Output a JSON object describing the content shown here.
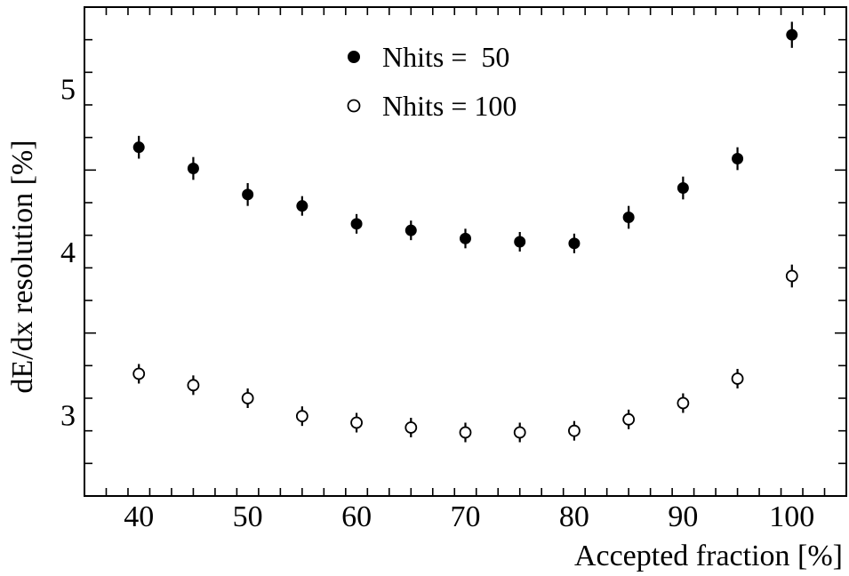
{
  "chart_data": {
    "type": "scatter",
    "xlabel": "Accepted fraction   [%]",
    "ylabel": "dE/dx resolution  [%]",
    "xlim": [
      35,
      105
    ],
    "ylim": [
      2.5,
      5.5
    ],
    "xticks": [
      40,
      50,
      60,
      70,
      80,
      90,
      100
    ],
    "yticks": [
      3,
      4,
      5
    ],
    "x_minor_step": 2,
    "y_minor_step": 0.2,
    "grid": false,
    "legend_position": "top-center",
    "series": [
      {
        "name": "Nhits =  50",
        "marker": "filled-circle",
        "color": "#000000",
        "x": [
          40,
          45,
          50,
          55,
          60,
          65,
          70,
          75,
          80,
          85,
          90,
          95,
          100
        ],
        "y": [
          4.64,
          4.51,
          4.35,
          4.28,
          4.17,
          4.13,
          4.08,
          4.06,
          4.05,
          4.21,
          4.39,
          4.57,
          5.33
        ],
        "yerr": [
          0.07,
          0.07,
          0.07,
          0.06,
          0.06,
          0.06,
          0.06,
          0.06,
          0.06,
          0.07,
          0.07,
          0.07,
          0.08
        ]
      },
      {
        "name": "Nhits = 100",
        "marker": "open-circle",
        "color": "#000000",
        "x": [
          40,
          45,
          50,
          55,
          60,
          65,
          70,
          75,
          80,
          85,
          90,
          95,
          100
        ],
        "y": [
          3.25,
          3.18,
          3.1,
          2.99,
          2.95,
          2.92,
          2.89,
          2.89,
          2.9,
          2.97,
          3.07,
          3.22,
          3.85
        ],
        "yerr": [
          0.06,
          0.06,
          0.06,
          0.06,
          0.06,
          0.06,
          0.06,
          0.06,
          0.06,
          0.06,
          0.06,
          0.06,
          0.07
        ]
      }
    ]
  }
}
